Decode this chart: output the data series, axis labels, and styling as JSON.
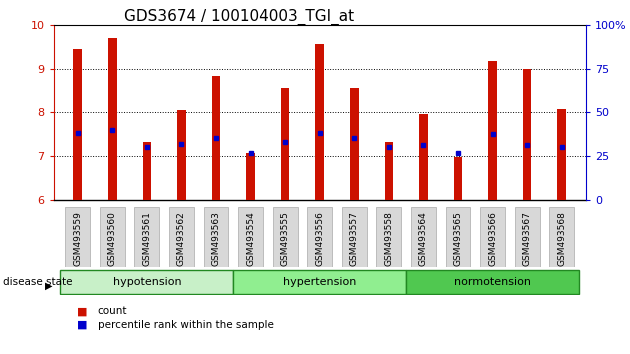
{
  "title": "GDS3674 / 100104003_TGI_at",
  "samples": [
    "GSM493559",
    "GSM493560",
    "GSM493561",
    "GSM493562",
    "GSM493563",
    "GSM493554",
    "GSM493555",
    "GSM493556",
    "GSM493557",
    "GSM493558",
    "GSM493564",
    "GSM493565",
    "GSM493566",
    "GSM493567",
    "GSM493568"
  ],
  "bar_heights": [
    9.45,
    9.7,
    7.33,
    8.05,
    8.83,
    7.07,
    8.55,
    9.57,
    8.55,
    7.33,
    7.97,
    6.98,
    9.18,
    9.0,
    8.07
  ],
  "percentile_values": [
    7.52,
    7.6,
    7.2,
    7.28,
    7.42,
    7.07,
    7.33,
    7.52,
    7.42,
    7.2,
    7.25,
    7.07,
    7.5,
    7.25,
    7.22
  ],
  "ymin": 6,
  "ymax": 10,
  "yright_min": 0,
  "yright_max": 100,
  "yticks_left": [
    6,
    7,
    8,
    9,
    10
  ],
  "yticks_right": [
    0,
    25,
    50,
    75,
    100
  ],
  "ytick_labels_right": [
    "0",
    "25",
    "50",
    "75",
    "100%"
  ],
  "groups": [
    {
      "label": "hypotension",
      "start": 0,
      "end": 5,
      "color": "#c8f0c8"
    },
    {
      "label": "hypertension",
      "start": 5,
      "end": 10,
      "color": "#90ee90"
    },
    {
      "label": "normotension",
      "start": 10,
      "end": 15,
      "color": "#50c850"
    }
  ],
  "disease_state_label": "disease state",
  "bar_color": "#cc1100",
  "percentile_color": "#0000cc",
  "bar_bottom": 6,
  "legend_items": [
    {
      "color": "#cc1100",
      "label": "count"
    },
    {
      "color": "#0000cc",
      "label": "percentile rank within the sample"
    }
  ],
  "title_fontsize": 11,
  "axis_label_color_left": "#cc1100",
  "axis_label_color_right": "#0000cc",
  "bar_width": 0.25,
  "xtick_bg": "#d8d8d8",
  "xtick_edge": "#aaaaaa",
  "group_edge_color": "#228822"
}
